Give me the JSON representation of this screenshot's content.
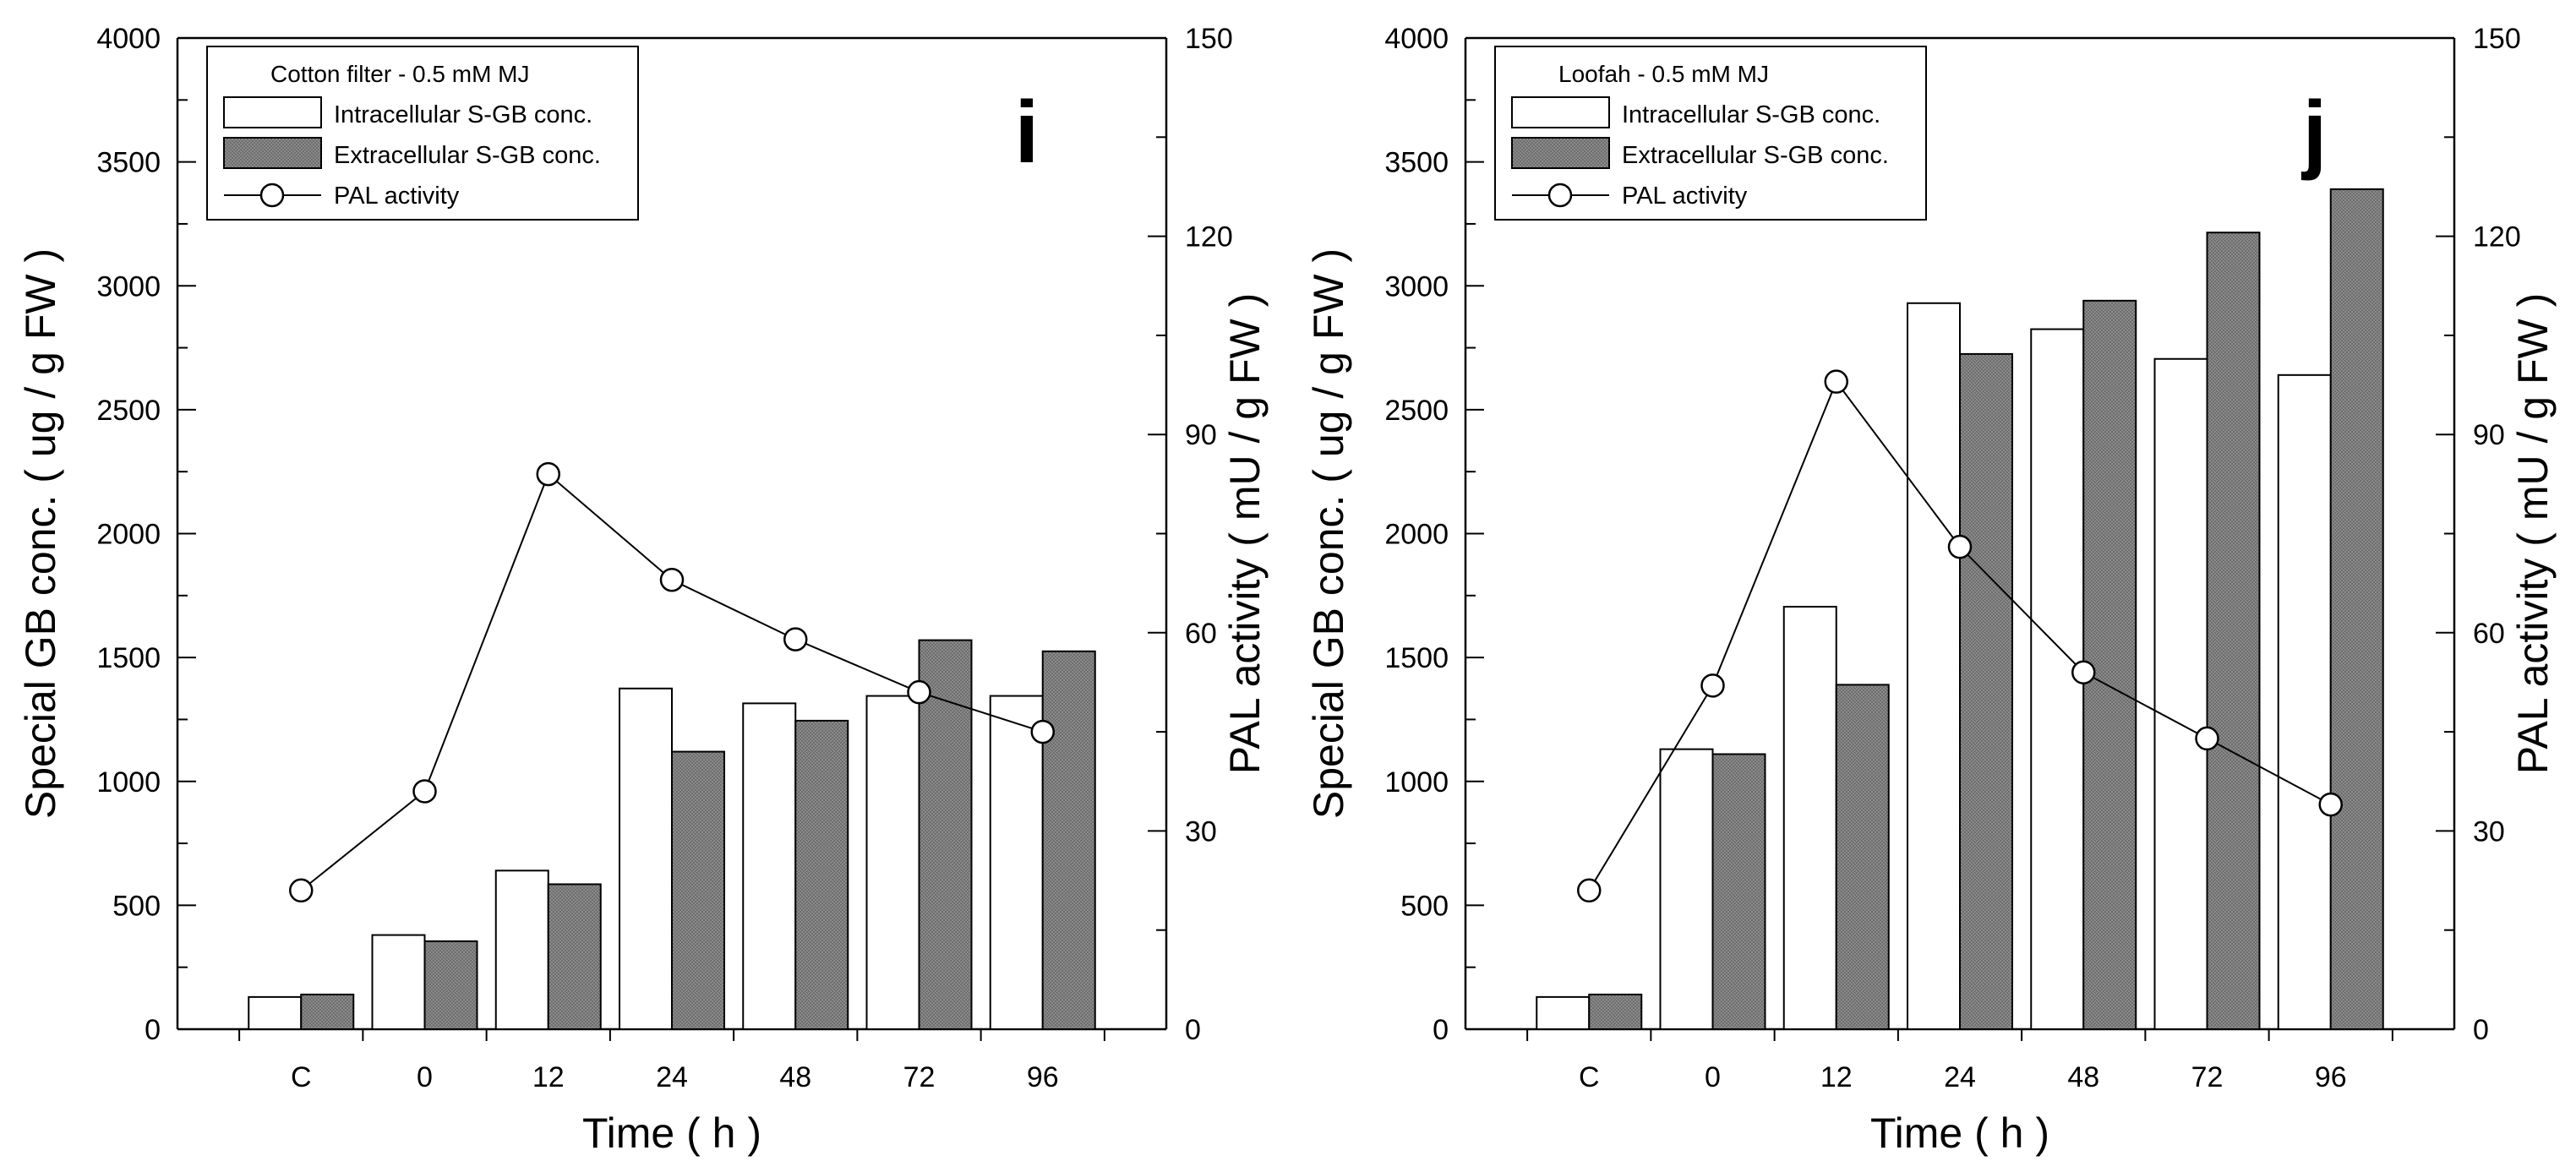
{
  "chart_data": [
    {
      "type": "bar+line",
      "panel_label": "i",
      "legend_title": "Cotton filter - 0.5 mM MJ",
      "legend_placement": "top-left",
      "categories": [
        "C",
        "0",
        "12",
        "24",
        "48",
        "72",
        "96"
      ],
      "xlabel": "Time ( h )",
      "ylabel": "Special GB conc. ( ug / g FW )",
      "y2label": "PAL activity ( mU / g FW )",
      "ylim": [
        0,
        4000
      ],
      "y2lim": [
        0,
        150
      ],
      "yticks": [
        0,
        500,
        1000,
        1500,
        2000,
        2500,
        3000,
        3500,
        4000
      ],
      "y2ticks": [
        0,
        30,
        60,
        90,
        120,
        150
      ],
      "series": [
        {
          "name": "Intracellular S-GB conc.",
          "kind": "bar",
          "color": "#ffffff",
          "values": [
            130,
            380,
            640,
            1375,
            1315,
            1345,
            1345
          ]
        },
        {
          "name": "Extracellular S-GB conc.",
          "kind": "bar",
          "color": "#808080",
          "values": [
            140,
            355,
            585,
            1120,
            1245,
            1570,
            1525
          ]
        },
        {
          "name": "PAL activity",
          "kind": "line",
          "axis": "right",
          "values": [
            21,
            36,
            84,
            68,
            59,
            51,
            45
          ]
        }
      ]
    },
    {
      "type": "bar+line",
      "panel_label": "j",
      "legend_title": "Loofah - 0.5 mM MJ",
      "legend_placement": "top-left",
      "categories": [
        "C",
        "0",
        "12",
        "24",
        "48",
        "72",
        "96"
      ],
      "xlabel": "Time ( h )",
      "ylabel": "Special GB conc. ( ug / g FW )",
      "y2label": "PAL activity ( mU / g FW )",
      "ylim": [
        0,
        4000
      ],
      "y2lim": [
        0,
        150
      ],
      "yticks": [
        0,
        500,
        1000,
        1500,
        2000,
        2500,
        3000,
        3500,
        4000
      ],
      "y2ticks": [
        0,
        30,
        60,
        90,
        120,
        150
      ],
      "series": [
        {
          "name": "Intracellular S-GB conc.",
          "kind": "bar",
          "color": "#ffffff",
          "values": [
            130,
            1130,
            1705,
            2930,
            2825,
            2705,
            2640
          ]
        },
        {
          "name": "Extracellular S-GB conc.",
          "kind": "bar",
          "color": "#808080",
          "values": [
            140,
            1110,
            1390,
            2725,
            2940,
            3215,
            3390
          ]
        },
        {
          "name": "PAL activity",
          "kind": "line",
          "axis": "right",
          "values": [
            21,
            52,
            98,
            73,
            54,
            44,
            34
          ]
        }
      ]
    }
  ]
}
